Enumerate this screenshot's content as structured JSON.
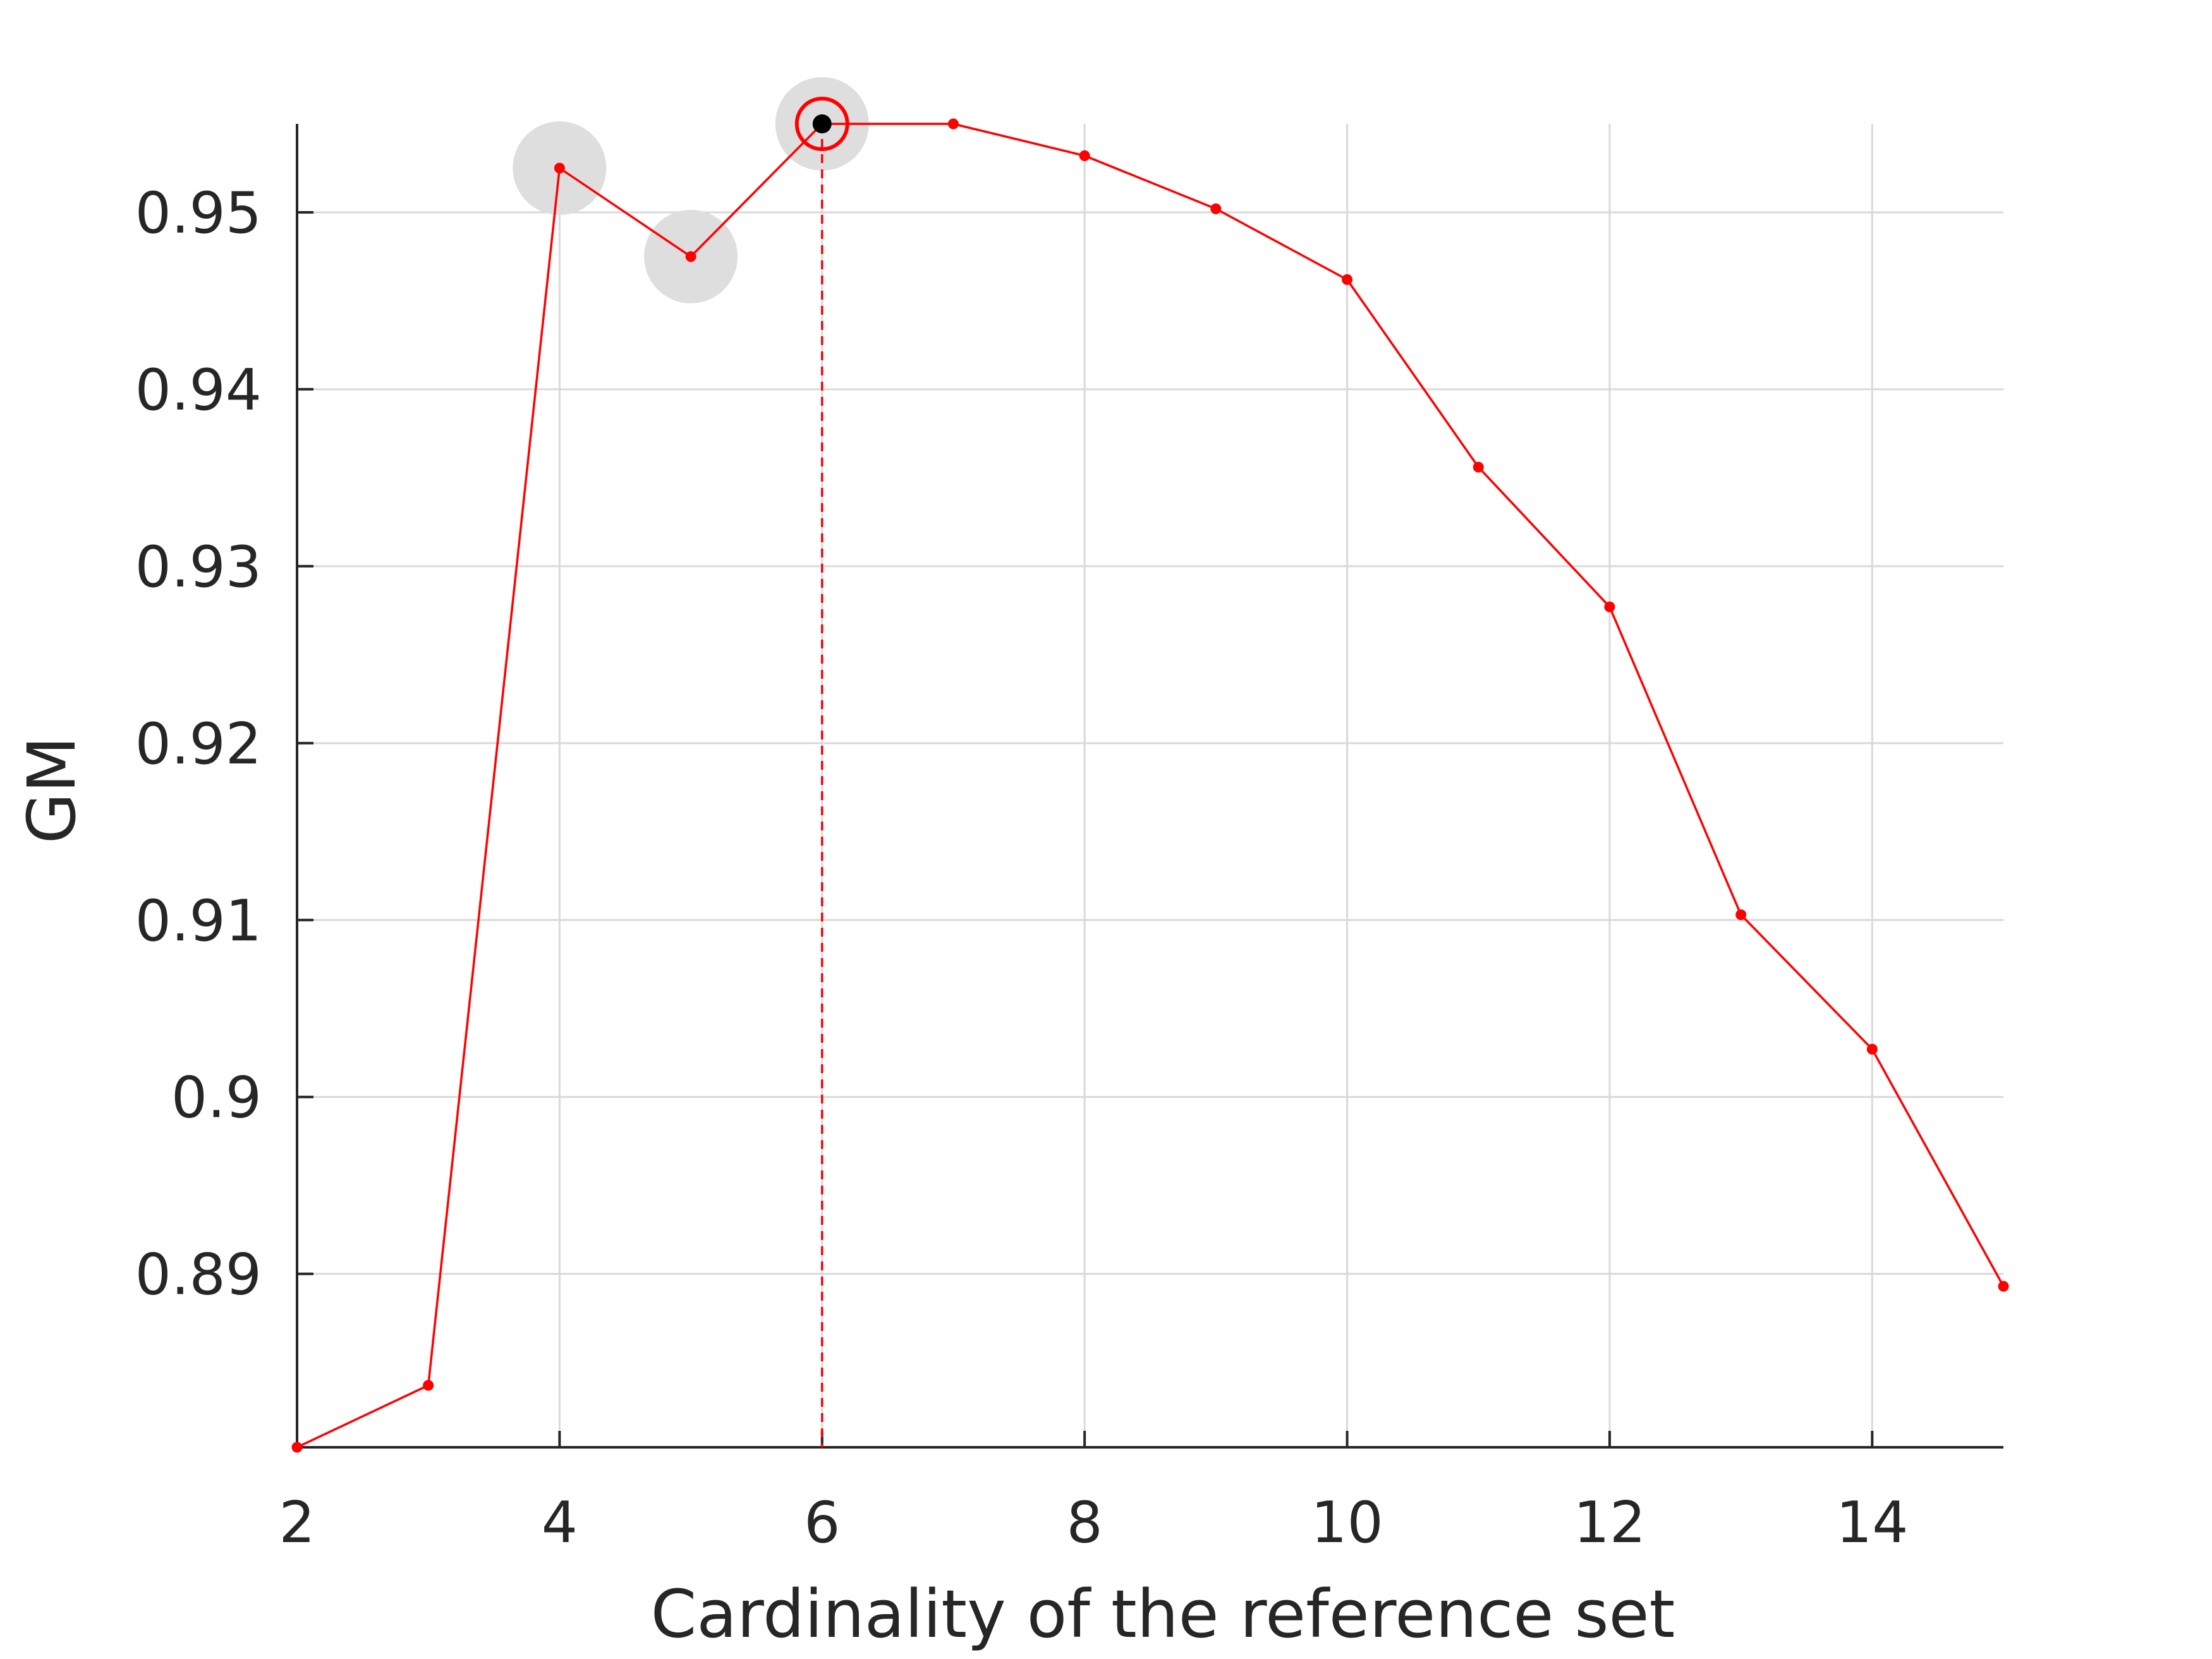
{
  "chart_data": {
    "type": "line",
    "xlabel": "Cardinality of the reference set",
    "ylabel": "GM",
    "xlim": [
      2,
      15
    ],
    "ylim": [
      0.8802,
      0.955
    ],
    "grid": true,
    "x_ticks": [
      2,
      4,
      6,
      8,
      10,
      12,
      14
    ],
    "x_tick_labels": [
      "2",
      "4",
      "6",
      "8",
      "10",
      "12",
      "14"
    ],
    "y_ticks": [
      0.89,
      0.9,
      0.91,
      0.92,
      0.93,
      0.94,
      0.95
    ],
    "y_tick_labels": [
      "0.89",
      "0.9",
      "0.91",
      "0.92",
      "0.93",
      "0.94",
      "0.95"
    ],
    "series": [
      {
        "x": [
          2,
          3,
          4,
          5,
          6,
          7,
          8,
          9,
          10,
          11,
          12,
          13,
          14,
          15
        ],
        "values": [
          0.8802,
          0.8837,
          0.9525,
          0.9475,
          0.955,
          0.955,
          0.9532,
          0.9502,
          0.9462,
          0.9356,
          0.9277,
          0.9103,
          0.9027,
          0.8893
        ],
        "color": "#ff0000"
      }
    ],
    "highlighted_points": [
      4,
      5,
      6
    ],
    "best_point": {
      "x": 6,
      "y": 0.955
    },
    "colors": {
      "line": "#ff0000",
      "highlight": "#dedede",
      "best_marker": "#000000",
      "grid": "#d9d9d9",
      "axis": "#262626"
    }
  }
}
